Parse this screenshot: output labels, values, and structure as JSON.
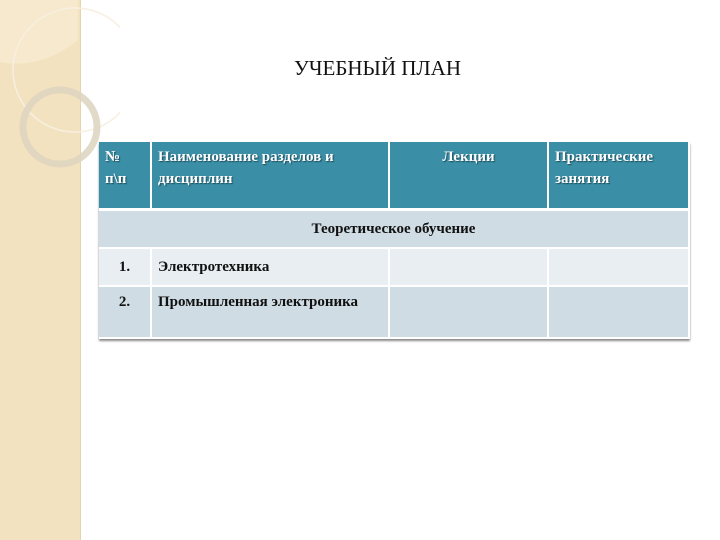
{
  "slide": {
    "title": "УЧЕБНЫЙ ПЛАН",
    "accent_color": "#3a8ea5",
    "sidebar_color": "#f3e2bf"
  },
  "table": {
    "headers": [
      "№ п\\п",
      "Наименование разделов и дисциплин",
      "Лекции",
      "Практические занятия"
    ],
    "section": "Теоретическое обучение",
    "rows": [
      {
        "num": "1.",
        "name": "Электротехника",
        "lectures": "",
        "practice": ""
      },
      {
        "num": "2.",
        "name": "Промышленная электроника",
        "lectures": "",
        "practice": ""
      }
    ]
  }
}
